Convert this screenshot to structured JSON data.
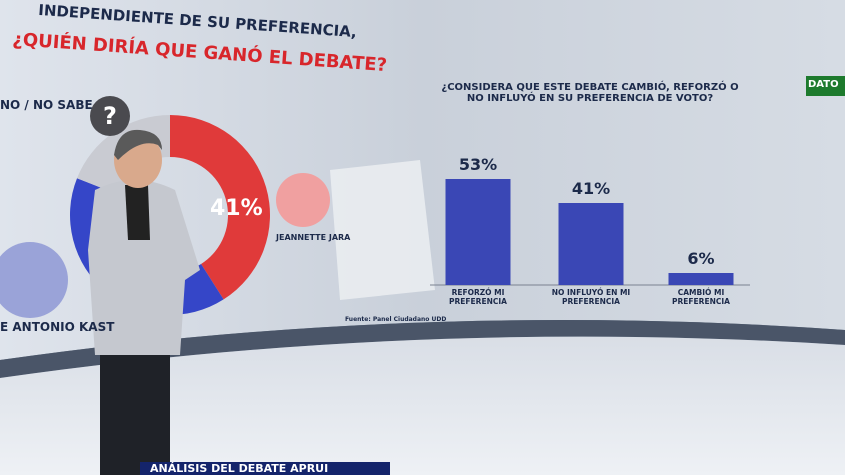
{
  "overlay": {
    "logo": "DATO",
    "lower_third": "ANÁLISIS DEL DEBATE APRUI"
  },
  "chart_data": [
    {
      "type": "pie",
      "subtitle": "INDEPENDIENTE DE SU PREFERENCIA,",
      "title": "¿QUIÉN DIRÍA QUE GANÓ EL DEBATE?",
      "annotations": [
        "?"
      ],
      "categories": [
        "JEANNETTE JARA",
        "E ANTONIO KAST",
        "NO / NO SABE"
      ],
      "values": [
        41,
        40,
        19
      ],
      "value_labels": [
        "41%",
        null,
        null
      ],
      "colors": [
        "#e03a3a",
        "#3546c8",
        "#c9cbd2"
      ]
    },
    {
      "type": "bar",
      "title": "¿CONSIDERA QUE ESTE DEBATE CAMBIÓ, REFORZÓ O NO INFLUYÓ EN SU PREFERENCIA DE VOTO?",
      "categories": [
        "REFORZÓ MI PREFERENCIA",
        "NO INFLUYÓ EN MI PREFERENCIA",
        "CAMBIÓ MI PREFERENCIA"
      ],
      "values": [
        53,
        41,
        6
      ],
      "value_labels": [
        "53%",
        "41%",
        "6%"
      ],
      "color": "#3a47b5",
      "source": "Fuente: Panel Ciudadano UDD"
    }
  ]
}
